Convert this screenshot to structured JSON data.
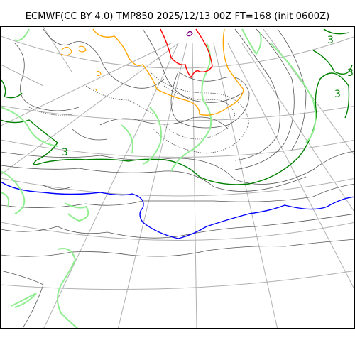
{
  "title": "ECMWF(CC BY 4.0) TMP850 2025/12/13 00Z FT=168 (init 0600Z)",
  "map": {
    "variable": "TMP850",
    "projection": "polar-stereographic",
    "graticule_color": "#b0b0b0",
    "contour_colors": {
      "minor_isotherm": "#555555",
      "label_3_isotherm": "#008000",
      "zero_isotherm": "#0000ff",
      "warm_isotherm_orange": "#ffa500",
      "warm_isotherm_red": "#ff0000",
      "light_green_isotherm": "#90ee90",
      "purple_small": "#800080"
    },
    "contour_labels": [
      "3",
      "3",
      "3",
      "3"
    ]
  }
}
